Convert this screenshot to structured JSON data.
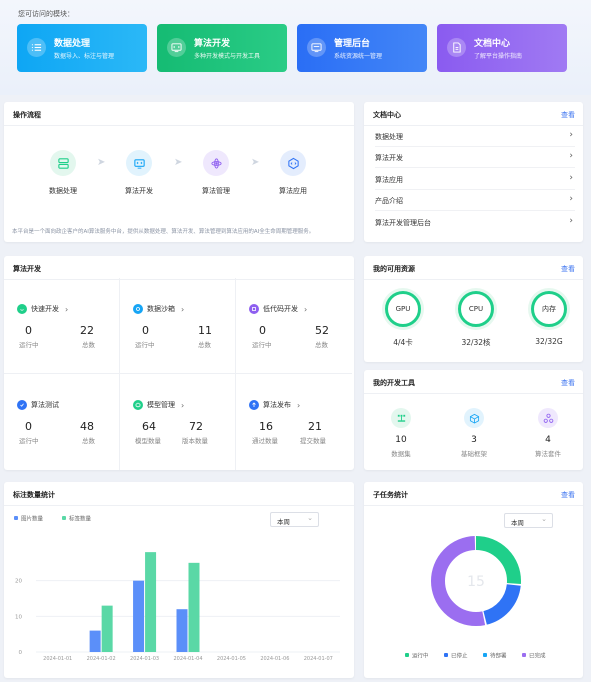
{
  "header": {
    "title": "您可访问的模块："
  },
  "modules": [
    {
      "title": "数据处理",
      "desc": "数据导入、标注与管理",
      "color": "#16a5f5",
      "icon": "list-icon"
    },
    {
      "title": "算法开发",
      "desc": "多种开发模式与开发工具",
      "color": "#19c07a",
      "icon": "code-icon"
    },
    {
      "title": "管理后台",
      "desc": "系统资源统一管理",
      "color": "#2f73f5",
      "icon": "monitor-icon"
    },
    {
      "title": "文档中心",
      "desc": "了解平台操作指南",
      "color": "#8e5ff0",
      "icon": "document-icon"
    }
  ],
  "flow": {
    "title": "操作流程",
    "steps": [
      {
        "label": "数据处理",
        "icon": "database-icon"
      },
      {
        "label": "算法开发",
        "icon": "code-screen-icon"
      },
      {
        "label": "算法管理",
        "icon": "atom-icon"
      },
      {
        "label": "算法应用",
        "icon": "app-icon"
      }
    ],
    "description": "本平台是一个面向政企客户的AI算法服务中台，提供从数据处理、算法开发、算法管理到算法应用的AI全生命周期管理服务。"
  },
  "docs": {
    "title": "文档中心",
    "link": "查看",
    "items": [
      "数据处理",
      "算法开发",
      "算法应用",
      "产品介绍",
      "算法开发管理后台"
    ]
  },
  "algo": {
    "title": "算法开发",
    "cells": [
      {
        "label": "快速开发",
        "icon": "smile-icon",
        "color": "#1fcf8a",
        "values": [
          "0",
          "22"
        ],
        "keys": [
          "运行中",
          "总数"
        ]
      },
      {
        "label": "数据沙箱",
        "icon": "sandbox-icon",
        "color": "#16a5f5",
        "values": [
          "0",
          "11"
        ],
        "keys": [
          "运行中",
          "总数"
        ]
      },
      {
        "label": "低代码开发",
        "icon": "lowcode-icon",
        "color": "#8e5ff0",
        "values": [
          "0",
          "52"
        ],
        "keys": [
          "运行中",
          "总数"
        ]
      },
      {
        "label": "算法测试",
        "icon": "test-icon",
        "color": "#2f73f5",
        "values": [
          "0",
          "48"
        ],
        "keys": [
          "运行中",
          "总数"
        ]
      },
      {
        "label": "模型管理",
        "icon": "model-icon",
        "color": "#1fcf8a",
        "values": [
          "64",
          "72"
        ],
        "keys": [
          "模型数量",
          "版本数量"
        ]
      },
      {
        "label": "算法发布",
        "icon": "publish-icon",
        "color": "#2f73f5",
        "values": [
          "16",
          "21"
        ],
        "keys": [
          "通过数量",
          "提交数量"
        ]
      }
    ]
  },
  "resources": {
    "title": "我的可用资源",
    "link": "查看",
    "items": [
      {
        "name": "GPU",
        "value": "4/4卡"
      },
      {
        "name": "CPU",
        "value": "32/32核"
      },
      {
        "name": "内存",
        "value": "32/32G"
      }
    ]
  },
  "tools": {
    "title": "我的开发工具",
    "link": "查看",
    "items": [
      {
        "value": "10",
        "label": "数据集",
        "icon": "dataset-icon",
        "color": "#1fcf8a",
        "bg": "#e3f7ee"
      },
      {
        "value": "3",
        "label": "基础框架",
        "icon": "cube-icon",
        "color": "#16a5f5",
        "bg": "#e1f3fd"
      },
      {
        "value": "4",
        "label": "算法套件",
        "icon": "suite-icon",
        "color": "#8e5ff0",
        "bg": "#efe8fd"
      }
    ]
  },
  "annotation_stats": {
    "title": "标注数量统计",
    "select_value": "本周",
    "chart_data": {
      "type": "bar",
      "categories": [
        "2024-01-01",
        "2024-01-02",
        "2024-01-03",
        "2024-01-04",
        "2024-01-05",
        "2024-01-06",
        "2024-01-07"
      ],
      "series": [
        {
          "name": "图片数量",
          "color": "#5b8ff9",
          "values": [
            0,
            6,
            20,
            12,
            0,
            0,
            0
          ]
        },
        {
          "name": "标签数量",
          "color": "#5ad8a6",
          "values": [
            0,
            13,
            28,
            25,
            0,
            0,
            0
          ]
        }
      ],
      "yticks": [
        "0",
        "10",
        "20"
      ],
      "ylim": [
        0,
        30
      ],
      "legend": "top-left",
      "grid": true
    }
  },
  "subtask_stats": {
    "title": "子任务统计",
    "link": "查看",
    "select_value": "本周",
    "chart_data": {
      "type": "pie",
      "center_value": "15",
      "slices": [
        {
          "name": "运行中",
          "value": 4,
          "color": "#1fcf8a"
        },
        {
          "name": "已停止",
          "value": 3,
          "color": "#2f73f5"
        },
        {
          "name": "待部署",
          "value": 0,
          "color": "#16a5f5"
        },
        {
          "name": "已完成",
          "value": 8,
          "color": "#9b6ef0"
        }
      ]
    }
  }
}
